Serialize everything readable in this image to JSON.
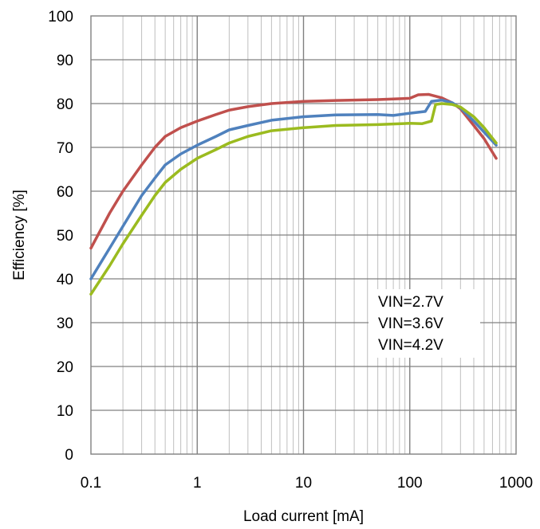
{
  "chart_data": {
    "type": "line",
    "title": "",
    "xlabel": "Load current [mA]",
    "ylabel": "Efficiency [%]",
    "xscale": "log",
    "xlim": [
      0.1,
      1000
    ],
    "ylim": [
      0,
      100
    ],
    "x_tick_labels": [
      "0.1",
      "1",
      "10",
      "100",
      "1000"
    ],
    "y_tick_labels": [
      "0",
      "10",
      "20",
      "30",
      "40",
      "50",
      "60",
      "70",
      "80",
      "90",
      "100"
    ],
    "grid": true,
    "legend_position": "lower-right",
    "series": [
      {
        "name": "VIN=2.7V",
        "color": "#c0504d",
        "points": [
          [
            0.1,
            47
          ],
          [
            0.15,
            55
          ],
          [
            0.2,
            60
          ],
          [
            0.3,
            66
          ],
          [
            0.4,
            70
          ],
          [
            0.5,
            72.5
          ],
          [
            0.7,
            74.5
          ],
          [
            1,
            76
          ],
          [
            1.5,
            77.5
          ],
          [
            2,
            78.5
          ],
          [
            3,
            79.3
          ],
          [
            5,
            80
          ],
          [
            10,
            80.5
          ],
          [
            20,
            80.7
          ],
          [
            50,
            80.9
          ],
          [
            100,
            81.2
          ],
          [
            120,
            82
          ],
          [
            150,
            82.1
          ],
          [
            200,
            81.3
          ],
          [
            250,
            80.2
          ],
          [
            300,
            78.8
          ],
          [
            400,
            75
          ],
          [
            500,
            72
          ],
          [
            650,
            67.5
          ]
        ]
      },
      {
        "name": "VIN=3.6V",
        "color": "#4f81bd",
        "points": [
          [
            0.1,
            40
          ],
          [
            0.15,
            47
          ],
          [
            0.2,
            52
          ],
          [
            0.3,
            59
          ],
          [
            0.4,
            63
          ],
          [
            0.5,
            66
          ],
          [
            0.7,
            68.5
          ],
          [
            1,
            70.5
          ],
          [
            1.5,
            72.5
          ],
          [
            2,
            74
          ],
          [
            3,
            75
          ],
          [
            5,
            76.2
          ],
          [
            10,
            77
          ],
          [
            20,
            77.4
          ],
          [
            50,
            77.5
          ],
          [
            70,
            77.3
          ],
          [
            100,
            77.8
          ],
          [
            140,
            78.2
          ],
          [
            160,
            80.5
          ],
          [
            200,
            80.8
          ],
          [
            250,
            80.2
          ],
          [
            300,
            79
          ],
          [
            400,
            76
          ],
          [
            500,
            73.5
          ],
          [
            650,
            70.5
          ]
        ]
      },
      {
        "name": "VIN=4.2V",
        "color": "#9bbb1f",
        "points": [
          [
            0.1,
            36.5
          ],
          [
            0.15,
            43
          ],
          [
            0.2,
            48
          ],
          [
            0.3,
            54.5
          ],
          [
            0.4,
            59
          ],
          [
            0.5,
            62
          ],
          [
            0.7,
            65
          ],
          [
            1,
            67.5
          ],
          [
            1.5,
            69.5
          ],
          [
            2,
            71
          ],
          [
            3,
            72.5
          ],
          [
            5,
            73.8
          ],
          [
            10,
            74.5
          ],
          [
            20,
            75
          ],
          [
            50,
            75.2
          ],
          [
            100,
            75.5
          ],
          [
            130,
            75.4
          ],
          [
            160,
            76
          ],
          [
            175,
            79.8
          ],
          [
            200,
            80
          ],
          [
            250,
            79.8
          ],
          [
            300,
            79.2
          ],
          [
            400,
            77
          ],
          [
            500,
            74.5
          ],
          [
            650,
            71
          ]
        ]
      }
    ]
  }
}
